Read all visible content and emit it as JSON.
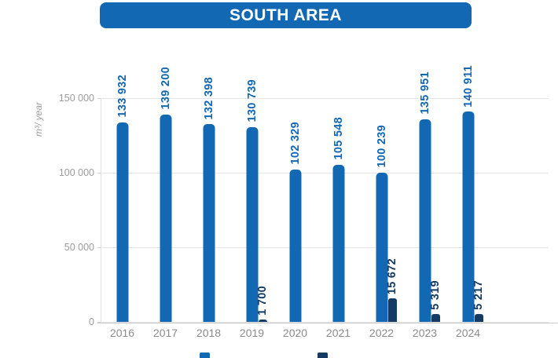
{
  "title": "SOUTH AREA",
  "colors": {
    "primary": "#1268b2",
    "secondary": "#153a63",
    "banner": "#1268b2",
    "grid": "#e4e4e4",
    "axis_text": "#9b9b9b",
    "year_text": "#8b8b8b"
  },
  "y_axis": {
    "title": "m³/ year",
    "ticks": [
      "150 000",
      "100 000",
      "50 000",
      "0"
    ]
  },
  "chart_data": {
    "type": "bar",
    "title": "SOUTH AREA",
    "ylabel": "m³/ year",
    "ylim": [
      0,
      150000
    ],
    "grid": true,
    "legend_position": "bottom (clipped off-screen)",
    "categories": [
      "2016",
      "2017",
      "2018",
      "2019",
      "2020",
      "2021",
      "2022",
      "2023",
      "2024"
    ],
    "series": [
      {
        "name": "series-1-light-blue",
        "color": "#1268b2",
        "values": [
          133932,
          139200,
          132398,
          130739,
          102329,
          105548,
          100239,
          135951,
          140911
        ],
        "labels": [
          "133 932",
          "139 200",
          "132 398",
          "130 739",
          "102 329",
          "105 548",
          "100 239",
          "135 951",
          "140 911"
        ]
      },
      {
        "name": "series-2-dark-navy",
        "color": "#153a63",
        "values": [
          null,
          null,
          null,
          1700,
          null,
          null,
          15672,
          5319,
          5217
        ],
        "labels": [
          null,
          null,
          null,
          "1 700",
          null,
          null,
          "15 672",
          "5 319",
          "5 217"
        ]
      }
    ]
  },
  "legend": {
    "items": [
      {
        "name": "legend-series-1",
        "color": "#1268b2"
      },
      {
        "name": "legend-series-2",
        "color": "#153a63"
      }
    ]
  }
}
